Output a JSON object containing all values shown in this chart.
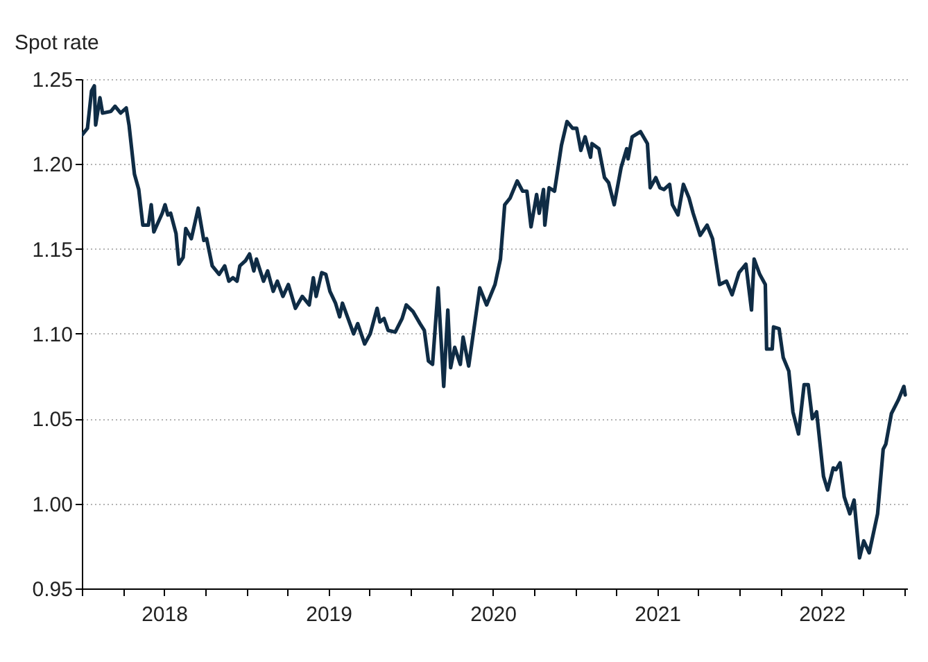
{
  "chart_data": {
    "type": "line",
    "ylabel": "Spot rate",
    "x": [
      2018.0,
      2018.034,
      2018.059,
      2018.076,
      2018.084,
      2018.11,
      2018.126,
      2018.177,
      2018.202,
      2018.236,
      2018.27,
      2018.287,
      2018.32,
      2018.346,
      2018.371,
      2018.405,
      2018.422,
      2018.438,
      2018.489,
      2018.506,
      2018.523,
      2018.54,
      2018.573,
      2018.59,
      2018.616,
      2018.632,
      2018.666,
      2018.708,
      2018.742,
      2018.759,
      2018.793,
      2018.835,
      2018.869,
      2018.894,
      2018.919,
      2018.944,
      2018.961,
      2018.995,
      2019.02,
      2019.046,
      2019.062,
      2019.105,
      2019.13,
      2019.164,
      2019.189,
      2019.223,
      2019.256,
      2019.299,
      2019.341,
      2019.383,
      2019.408,
      2019.425,
      2019.459,
      2019.484,
      2019.509,
      2019.543,
      2019.568,
      2019.585,
      2019.619,
      2019.653,
      2019.678,
      2019.72,
      2019.754,
      2019.796,
      2019.813,
      2019.838,
      2019.863,
      2019.906,
      2019.948,
      2019.973,
      2020.015,
      2020.057,
      2020.083,
      2020.108,
      2020.133,
      2020.167,
      2020.201,
      2020.226,
      2020.243,
      2020.268,
      2020.302,
      2020.319,
      2020.353,
      2020.42,
      2020.462,
      2020.513,
      2020.546,
      2020.572,
      2020.605,
      2020.648,
      2020.681,
      2020.707,
      2020.732,
      2020.766,
      2020.782,
      2020.808,
      2020.816,
      2020.842,
      2020.875,
      2020.917,
      2020.951,
      2020.985,
      2021.01,
      2021.035,
      2021.061,
      2021.094,
      2021.103,
      2021.145,
      2021.179,
      2021.204,
      2021.238,
      2021.28,
      2021.314,
      2021.322,
      2021.347,
      2021.398,
      2021.44,
      2021.457,
      2021.491,
      2021.516,
      2021.541,
      2021.575,
      2021.592,
      2021.626,
      2021.659,
      2021.693,
      2021.718,
      2021.761,
      2021.803,
      2021.836,
      2021.879,
      2021.921,
      2021.955,
      2021.997,
      2022.039,
      2022.073,
      2022.089,
      2022.123,
      2022.157,
      2022.165,
      2022.199,
      2022.207,
      2022.241,
      2022.266,
      2022.3,
      2022.325,
      2022.359,
      2022.393,
      2022.418,
      2022.443,
      2022.469,
      2022.511,
      2022.536,
      2022.57,
      2022.587,
      2022.612,
      2022.637,
      2022.671,
      2022.697,
      2022.73,
      2022.756,
      2022.789,
      2022.84,
      2022.874,
      2022.89,
      2022.924,
      2022.966,
      2023.0,
      2023.008
    ],
    "series": [
      {
        "color": "#0f2c45",
        "values": [
          1.217,
          1.221,
          1.243,
          1.246,
          1.223,
          1.239,
          1.23,
          1.231,
          1.234,
          1.23,
          1.233,
          1.223,
          1.194,
          1.185,
          1.164,
          1.164,
          1.176,
          1.16,
          1.171,
          1.176,
          1.17,
          1.171,
          1.159,
          1.141,
          1.145,
          1.162,
          1.156,
          1.174,
          1.155,
          1.156,
          1.14,
          1.135,
          1.14,
          1.131,
          1.133,
          1.131,
          1.14,
          1.143,
          1.147,
          1.137,
          1.144,
          1.131,
          1.137,
          1.125,
          1.131,
          1.122,
          1.129,
          1.115,
          1.122,
          1.117,
          1.133,
          1.122,
          1.136,
          1.135,
          1.125,
          1.118,
          1.11,
          1.118,
          1.109,
          1.1,
          1.106,
          1.094,
          1.1,
          1.115,
          1.107,
          1.109,
          1.102,
          1.101,
          1.109,
          1.117,
          1.113,
          1.106,
          1.102,
          1.084,
          1.082,
          1.127,
          1.069,
          1.114,
          1.08,
          1.092,
          1.082,
          1.098,
          1.081,
          1.127,
          1.117,
          1.129,
          1.144,
          1.176,
          1.18,
          1.19,
          1.184,
          1.184,
          1.163,
          1.182,
          1.171,
          1.185,
          1.164,
          1.186,
          1.184,
          1.211,
          1.225,
          1.221,
          1.221,
          1.208,
          1.216,
          1.204,
          1.212,
          1.209,
          1.192,
          1.189,
          1.176,
          1.198,
          1.209,
          1.203,
          1.216,
          1.219,
          1.212,
          1.186,
          1.192,
          1.186,
          1.185,
          1.188,
          1.176,
          1.17,
          1.188,
          1.18,
          1.171,
          1.158,
          1.164,
          1.156,
          1.129,
          1.131,
          1.123,
          1.136,
          1.141,
          1.114,
          1.144,
          1.135,
          1.129,
          1.091,
          1.091,
          1.104,
          1.103,
          1.086,
          1.078,
          1.054,
          1.041,
          1.07,
          1.07,
          1.05,
          1.054,
          1.016,
          1.008,
          1.021,
          1.02,
          1.024,
          1.004,
          0.994,
          1.002,
          0.968,
          0.978,
          0.971,
          0.994,
          1.032,
          1.035,
          1.053,
          1.061,
          1.069,
          1.064
        ]
      }
    ],
    "xlim": [
      2018,
      2023.02
    ],
    "xticks": [
      {
        "value": 2018,
        "label": null
      },
      {
        "value": 2018.25,
        "label": null
      },
      {
        "value": 2018.5,
        "label": "2018"
      },
      {
        "value": 2018.75,
        "label": null
      },
      {
        "value": 2019,
        "label": null
      },
      {
        "value": 2019.25,
        "label": null
      },
      {
        "value": 2019.5,
        "label": "2019"
      },
      {
        "value": 2019.75,
        "label": null
      },
      {
        "value": 2020,
        "label": null
      },
      {
        "value": 2020.25,
        "label": null
      },
      {
        "value": 2020.5,
        "label": "2020"
      },
      {
        "value": 2020.75,
        "label": null
      },
      {
        "value": 2021,
        "label": null
      },
      {
        "value": 2021.25,
        "label": null
      },
      {
        "value": 2021.5,
        "label": "2021"
      },
      {
        "value": 2021.75,
        "label": null
      },
      {
        "value": 2022,
        "label": null
      },
      {
        "value": 2022.25,
        "label": null
      },
      {
        "value": 2022.5,
        "label": "2022"
      },
      {
        "value": 2022.75,
        "label": null
      },
      {
        "value": 2023,
        "label": null
      }
    ],
    "ylim": [
      0.95,
      1.25
    ],
    "yticks": [
      0.95,
      {
        "value": 1,
        "label": "1.00"
      },
      1.05,
      {
        "value": 1.1,
        "label": "1.10"
      },
      1.15,
      {
        "value": 1.2,
        "label": "1.20"
      },
      1.25
    ],
    "grid": "y"
  }
}
